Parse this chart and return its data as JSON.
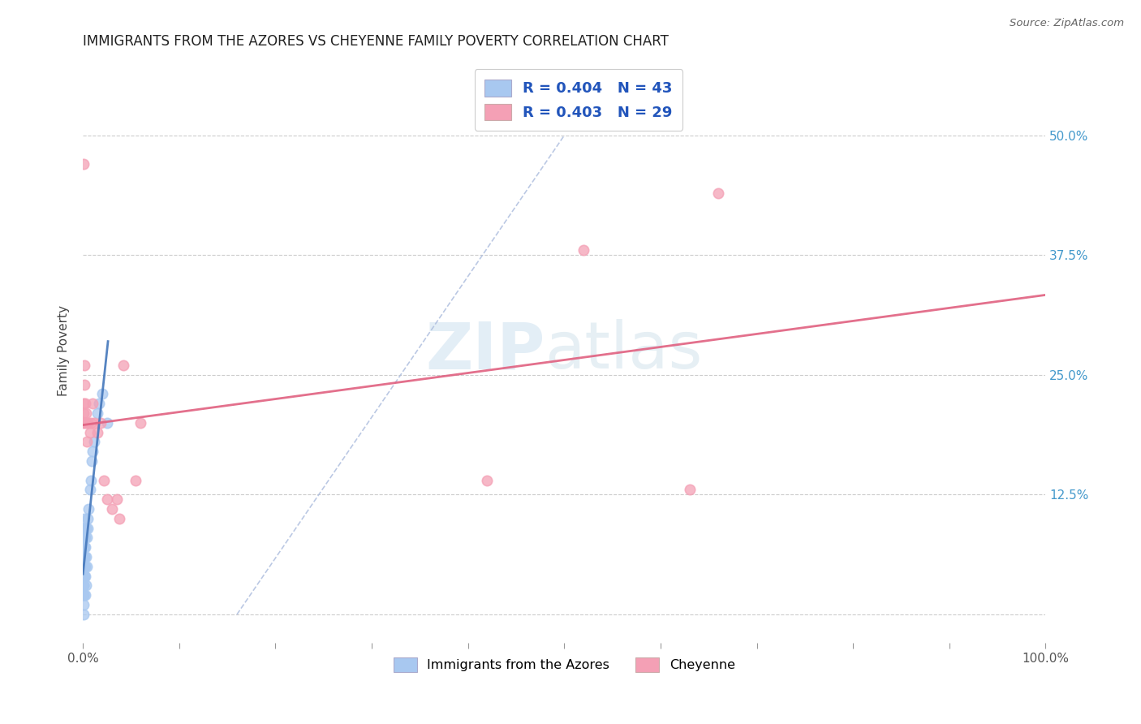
{
  "title": "IMMIGRANTS FROM THE AZORES VS CHEYENNE FAMILY POVERTY CORRELATION CHART",
  "source": "Source: ZipAtlas.com",
  "ylabel": "Family Poverty",
  "color_blue": "#a8c8f0",
  "color_pink": "#f4a0b5",
  "line_blue": "#4477bb",
  "line_pink": "#e06080",
  "line_dash": "#aabbdd",
  "watermark_color": "#cce0f0",
  "azores_x": [
    0.0003,
    0.0004,
    0.0004,
    0.0005,
    0.0005,
    0.0006,
    0.0007,
    0.0008,
    0.0008,
    0.0009,
    0.001,
    0.001,
    0.001,
    0.001,
    0.0012,
    0.0013,
    0.0014,
    0.0015,
    0.0016,
    0.0017,
    0.0018,
    0.002,
    0.002,
    0.002,
    0.0022,
    0.0025,
    0.003,
    0.003,
    0.0035,
    0.004,
    0.004,
    0.0045,
    0.005,
    0.006,
    0.007,
    0.008,
    0.009,
    0.01,
    0.012,
    0.015,
    0.017,
    0.02,
    0.025
  ],
  "azores_y": [
    0.04,
    0.07,
    0.09,
    0.02,
    0.05,
    0.03,
    0.06,
    0.04,
    0.08,
    0.05,
    0.0,
    0.01,
    0.02,
    0.03,
    0.06,
    0.07,
    0.05,
    0.04,
    0.08,
    0.1,
    0.06,
    0.02,
    0.04,
    0.05,
    0.07,
    0.08,
    0.03,
    0.06,
    0.09,
    0.05,
    0.08,
    0.1,
    0.09,
    0.11,
    0.13,
    0.14,
    0.16,
    0.17,
    0.18,
    0.21,
    0.22,
    0.23,
    0.2
  ],
  "cheyenne_x": [
    0.0003,
    0.0005,
    0.0007,
    0.001,
    0.0012,
    0.0015,
    0.002,
    0.0025,
    0.003,
    0.004,
    0.005,
    0.007,
    0.008,
    0.01,
    0.012,
    0.015,
    0.018,
    0.022,
    0.025,
    0.03,
    0.035,
    0.038,
    0.042,
    0.055,
    0.06,
    0.42,
    0.52,
    0.63,
    0.66
  ],
  "cheyenne_y": [
    0.47,
    0.2,
    0.22,
    0.21,
    0.24,
    0.26,
    0.2,
    0.22,
    0.21,
    0.18,
    0.2,
    0.19,
    0.2,
    0.22,
    0.2,
    0.19,
    0.2,
    0.14,
    0.12,
    0.11,
    0.12,
    0.1,
    0.26,
    0.14,
    0.2,
    0.14,
    0.38,
    0.13,
    0.44
  ],
  "xlim": [
    0.0,
    1.0
  ],
  "ylim": [
    -0.03,
    0.58
  ],
  "xtick_pos": [
    0.0,
    0.1,
    0.2,
    0.3,
    0.4,
    0.5,
    0.6,
    0.7,
    0.8,
    0.9,
    1.0
  ],
  "ytick_pos": [
    0.0,
    0.125,
    0.25,
    0.375,
    0.5
  ],
  "ytick_labels_right": [
    "",
    "12.5%",
    "25.0%",
    "37.5%",
    "50.0%"
  ]
}
